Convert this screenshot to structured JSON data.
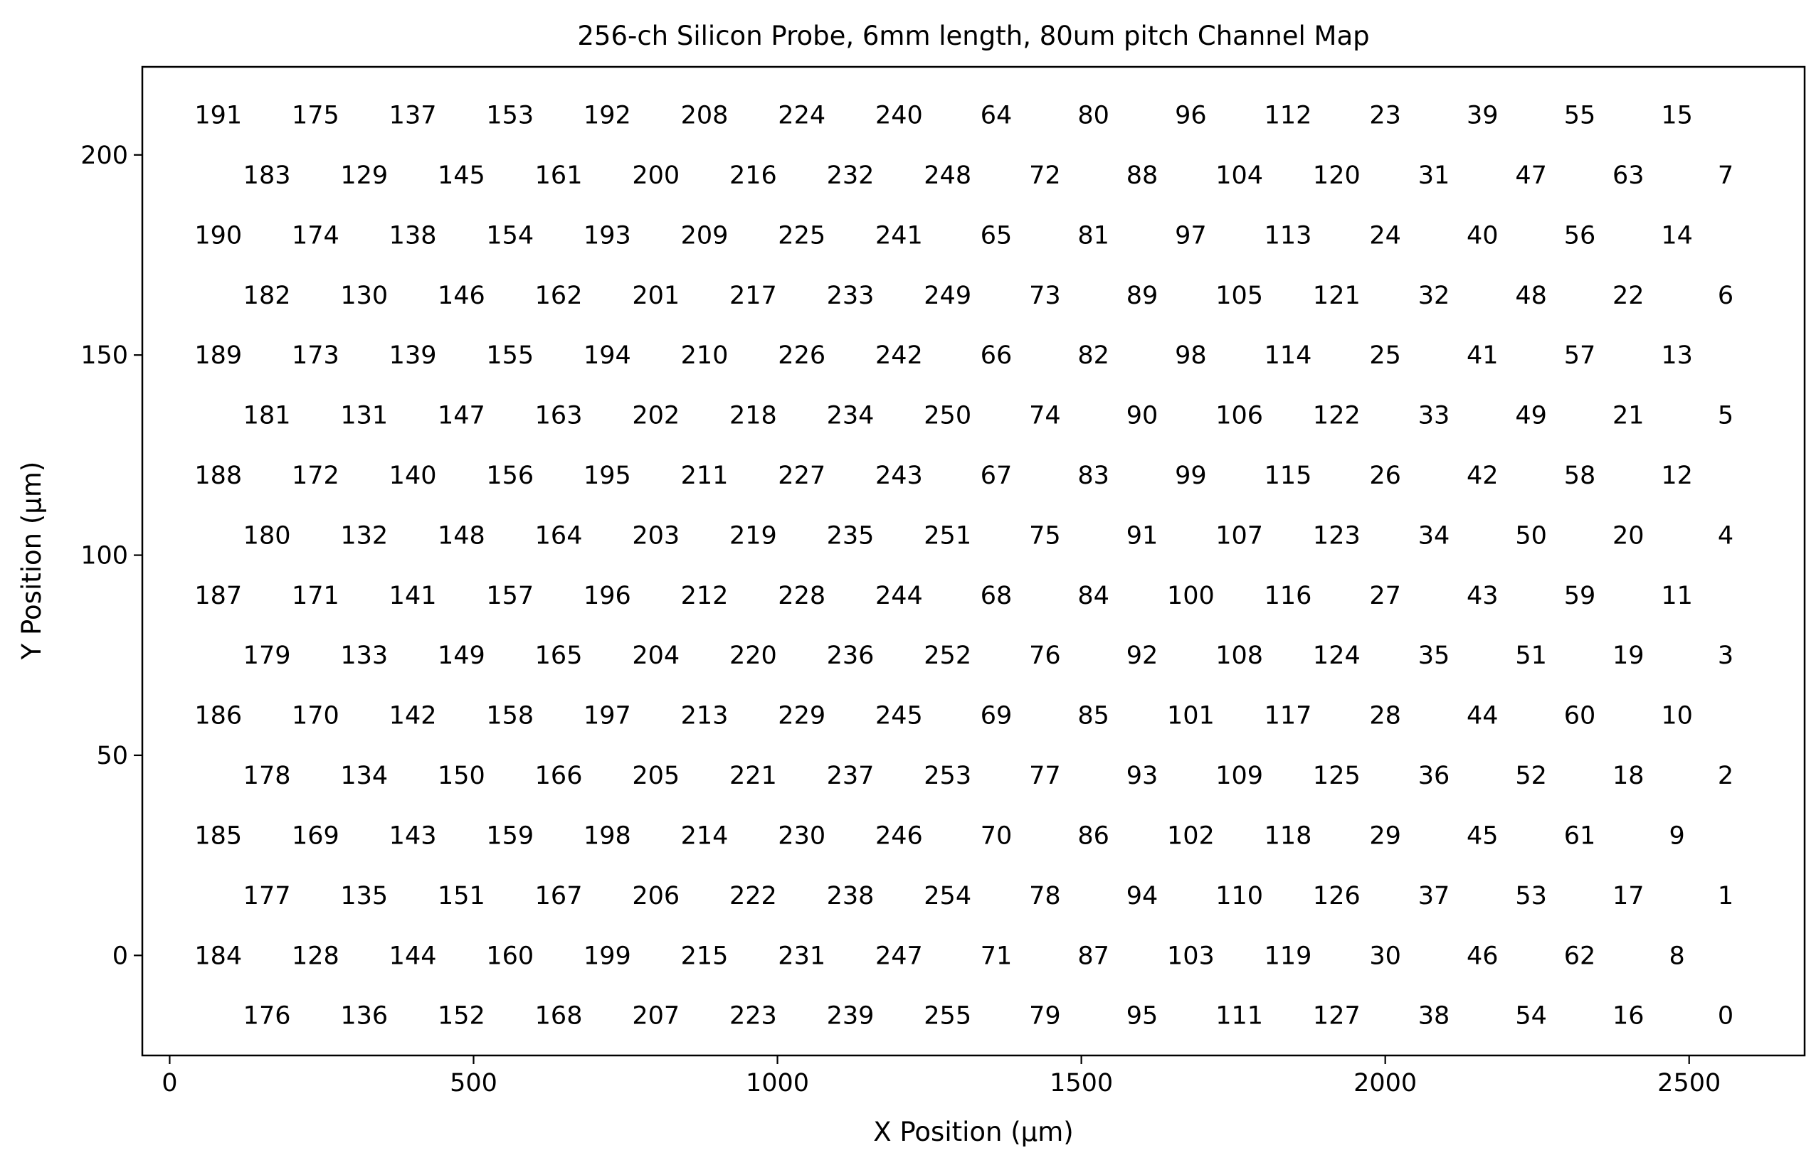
{
  "chart_data": {
    "type": "scatter",
    "title": "256-ch Silicon Probe, 6mm length, 80um pitch Channel Map",
    "xlabel": "X Position (µm)",
    "ylabel": "Y Position (µm)",
    "xlim": [
      -45,
      2690
    ],
    "ylim": [
      -25,
      222
    ],
    "xticks": [
      0,
      500,
      1000,
      1500,
      2000,
      2500
    ],
    "yticks": [
      0,
      50,
      100,
      150,
      200
    ],
    "grid": false,
    "legend": "none",
    "point_style": "text-label",
    "columns": [
      80,
      160,
      240,
      320,
      400,
      480,
      560,
      640,
      720,
      800,
      880,
      960,
      1040,
      1120,
      1200,
      1280,
      1360,
      1440,
      1520,
      1600,
      1680,
      1760,
      1840,
      1920,
      2000,
      2080,
      2160,
      2240,
      2320,
      2400,
      2480,
      2560
    ],
    "rows": [
      210,
      195,
      180,
      165,
      150,
      135,
      120,
      105,
      90,
      75,
      60,
      45,
      30,
      15,
      0,
      -15
    ],
    "even_row_cols": [
      0,
      2,
      4,
      6,
      8,
      10,
      12,
      14,
      16,
      18,
      20,
      22,
      24,
      26,
      28,
      30
    ],
    "odd_row_cols": [
      1,
      3,
      5,
      7,
      9,
      11,
      13,
      15,
      17,
      19,
      21,
      23,
      25,
      27,
      29,
      31
    ],
    "channels": [
      [
        "191",
        "175",
        "137",
        "153",
        "192",
        "208",
        "224",
        "240",
        "64",
        "80",
        "96",
        "112",
        "23",
        "39",
        "55",
        "15"
      ],
      [
        "183",
        "129",
        "145",
        "161",
        "200",
        "216",
        "232",
        "248",
        "72",
        "88",
        "104",
        "120",
        "31",
        "47",
        "63",
        "7"
      ],
      [
        "190",
        "174",
        "138",
        "154",
        "193",
        "209",
        "225",
        "241",
        "65",
        "81",
        "97",
        "113",
        "24",
        "40",
        "56",
        "14"
      ],
      [
        "182",
        "130",
        "146",
        "162",
        "201",
        "217",
        "233",
        "249",
        "73",
        "89",
        "105",
        "121",
        "32",
        "48",
        "22",
        "6"
      ],
      [
        "189",
        "173",
        "139",
        "155",
        "194",
        "210",
        "226",
        "242",
        "66",
        "82",
        "98",
        "114",
        "25",
        "41",
        "57",
        "13"
      ],
      [
        "181",
        "131",
        "147",
        "163",
        "202",
        "218",
        "234",
        "250",
        "74",
        "90",
        "106",
        "122",
        "33",
        "49",
        "21",
        "5"
      ],
      [
        "188",
        "172",
        "140",
        "156",
        "195",
        "211",
        "227",
        "243",
        "67",
        "83",
        "99",
        "115",
        "26",
        "42",
        "58",
        "12"
      ],
      [
        "180",
        "132",
        "148",
        "164",
        "203",
        "219",
        "235",
        "251",
        "75",
        "91",
        "107",
        "123",
        "34",
        "50",
        "20",
        "4"
      ],
      [
        "187",
        "171",
        "141",
        "157",
        "196",
        "212",
        "228",
        "244",
        "68",
        "84",
        "100",
        "116",
        "27",
        "43",
        "59",
        "11"
      ],
      [
        "179",
        "133",
        "149",
        "165",
        "204",
        "220",
        "236",
        "252",
        "76",
        "92",
        "108",
        "124",
        "35",
        "51",
        "19",
        "3"
      ],
      [
        "186",
        "170",
        "142",
        "158",
        "197",
        "213",
        "229",
        "245",
        "69",
        "85",
        "101",
        "117",
        "28",
        "44",
        "60",
        "10"
      ],
      [
        "178",
        "134",
        "150",
        "166",
        "205",
        "221",
        "237",
        "253",
        "77",
        "93",
        "109",
        "125",
        "36",
        "52",
        "18",
        "2"
      ],
      [
        "185",
        "169",
        "143",
        "159",
        "198",
        "214",
        "230",
        "246",
        "70",
        "86",
        "102",
        "118",
        "29",
        "45",
        "61",
        "9"
      ],
      [
        "177",
        "135",
        "151",
        "167",
        "206",
        "222",
        "238",
        "254",
        "78",
        "94",
        "110",
        "126",
        "37",
        "53",
        "17",
        "1"
      ],
      [
        "184",
        "128",
        "144",
        "160",
        "199",
        "215",
        "231",
        "247",
        "71",
        "87",
        "103",
        "119",
        "30",
        "46",
        "62",
        "8"
      ],
      [
        "176",
        "136",
        "152",
        "168",
        "207",
        "223",
        "239",
        "255",
        "79",
        "95",
        "111",
        "127",
        "38",
        "54",
        "16",
        "0"
      ]
    ]
  }
}
